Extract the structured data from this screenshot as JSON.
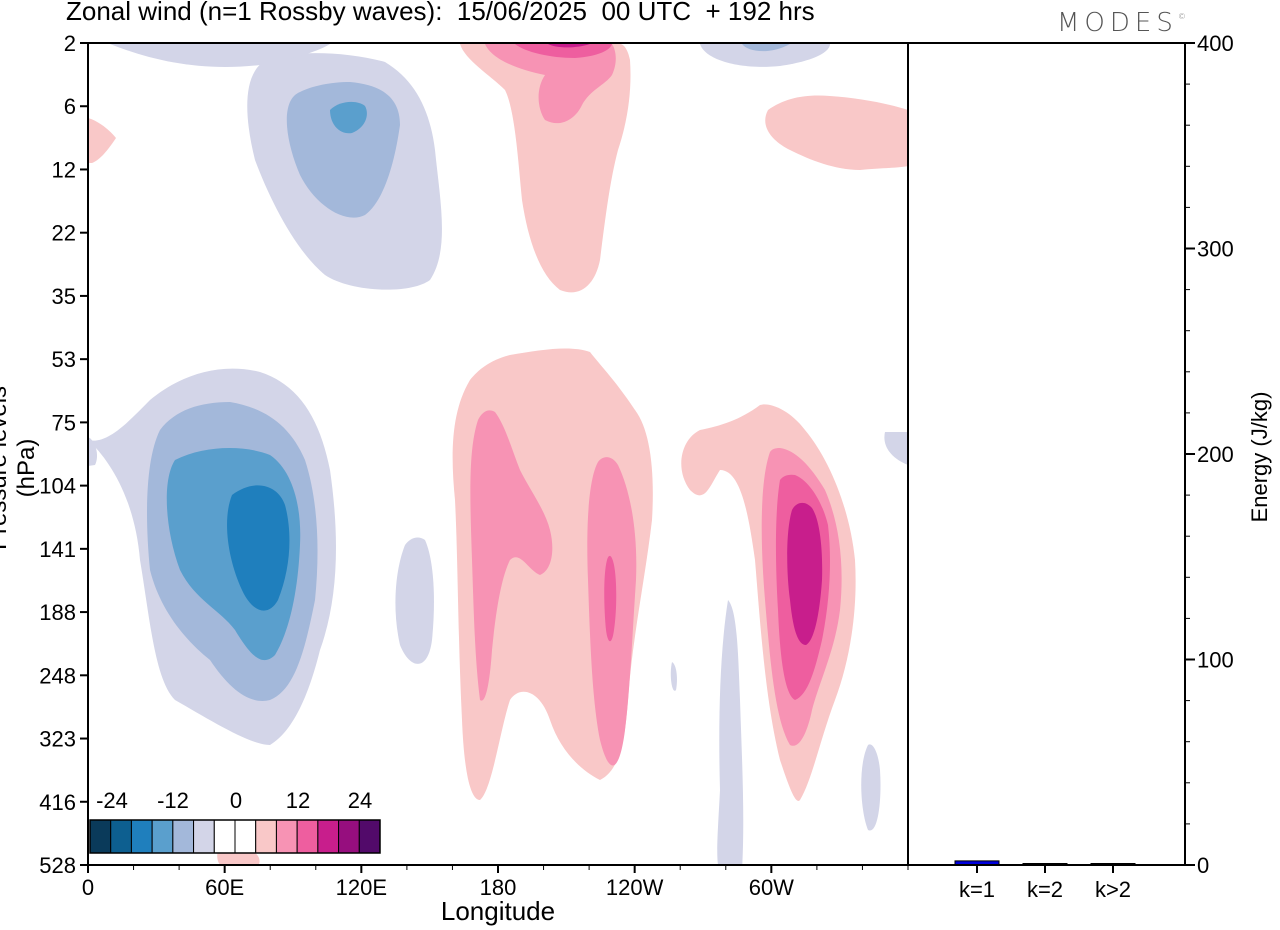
{
  "header": {
    "title": "Zonal wind (n=1 Rossby waves):  15/06/2025  00 UTC  + 192 hrs",
    "logo": "MODES"
  },
  "chart_data": [
    {
      "type": "heatmap",
      "title": "Zonal wind (n=1 Rossby waves):  15/06/2025  00 UTC  + 192 hrs",
      "xlabel": "Longitude",
      "ylabel": "Pressure levels (hPa)",
      "x_ticks": [
        "0",
        "60E",
        "120E",
        "180",
        "120W",
        "60W"
      ],
      "y_ticks": [
        "2",
        "6",
        "12",
        "22",
        "35",
        "53",
        "75",
        "104",
        "141",
        "188",
        "248",
        "323",
        "416",
        "528"
      ],
      "colorbar": {
        "tick_labels": [
          "-24",
          "-12",
          "0",
          "12",
          "24"
        ],
        "levels": [
          -30,
          -27,
          -24,
          -21,
          -18,
          -15,
          -12,
          -9,
          -6,
          -3,
          0,
          3,
          6,
          9,
          12,
          15,
          18,
          21,
          24,
          27,
          30
        ],
        "colors": [
          "#0a3a5a",
          "#0d5f90",
          "#1f7fbd",
          "#5a9fcd",
          "#a3b8da",
          "#d3d5e8",
          "#ffffff",
          "#ffffff",
          "#f9c8c8",
          "#f793b4",
          "#ee5e9f",
          "#c81e8c",
          "#960e7e",
          "#520a6a"
        ]
      },
      "features": [
        {
          "type": "negative",
          "lon_range": [
            "20E",
            "110E"
          ],
          "pressure_range": [
            75,
            323
          ],
          "min": -21
        },
        {
          "type": "negative",
          "lon_range": [
            "70E",
            "155E"
          ],
          "pressure_range": [
            2,
            35
          ],
          "min": -15
        },
        {
          "type": "positive",
          "lon_range": [
            "165E",
            "130W"
          ],
          "pressure_range": [
            53,
            416
          ],
          "max": 15
        },
        {
          "type": "positive",
          "lon_range": [
            "170W",
            "125W"
          ],
          "pressure_range": [
            2,
            35
          ],
          "max": 15
        },
        {
          "type": "positive",
          "lon_range": [
            "85W",
            "30W"
          ],
          "pressure_range": [
            75,
            416
          ],
          "max": 21
        }
      ]
    },
    {
      "type": "bar",
      "categories": [
        "k=1",
        "k=2",
        "k>2"
      ],
      "values": [
        2,
        0.5,
        0.5
      ],
      "colors": [
        "#0000dd",
        "#1a1a1a",
        "#1a1a1a"
      ],
      "ylabel": "Energy (J/kg)",
      "ylim": [
        0,
        400
      ],
      "y_ticks": [
        "0",
        "100",
        "200",
        "300",
        "400"
      ]
    }
  ]
}
